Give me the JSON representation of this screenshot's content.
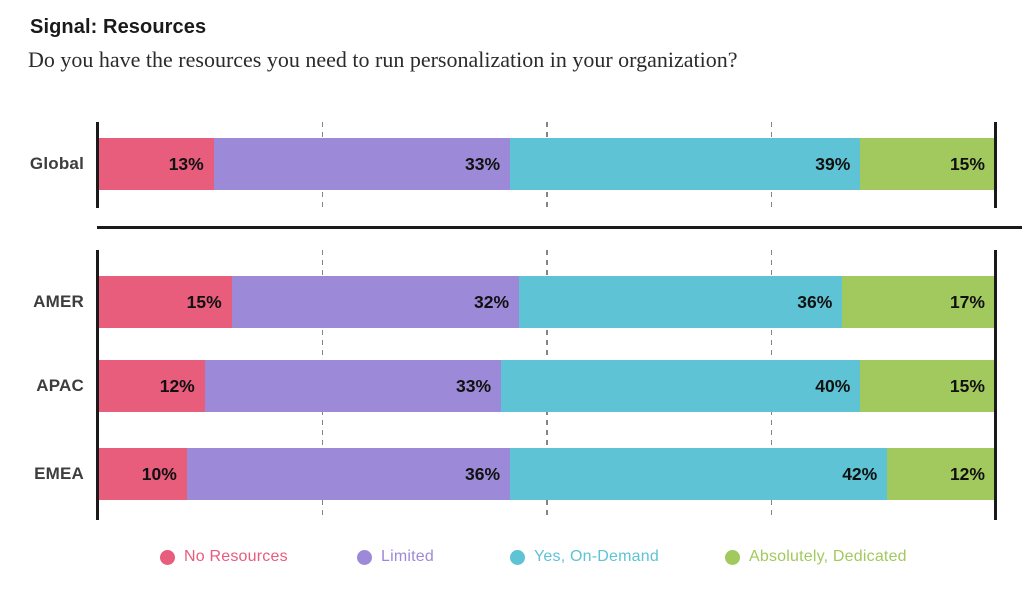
{
  "header": {
    "title": "Signal: Resources",
    "subtitle": "Do you have the resources you need to run personalization in your organization?"
  },
  "chart_data": {
    "type": "bar",
    "orientation": "horizontal",
    "stacked": true,
    "value_unit": "%",
    "xlim": [
      0,
      100
    ],
    "gridlines_percent": [
      25,
      50,
      75
    ],
    "grid_style": "dashed",
    "legend_position": "bottom",
    "categories": [
      "Global",
      "AMER",
      "APAC",
      "EMEA"
    ],
    "panels": [
      [
        "Global"
      ],
      [
        "AMER",
        "APAC",
        "EMEA"
      ]
    ],
    "series": [
      {
        "name": "No Resources",
        "color": "#E85C7C",
        "values": [
          13,
          15,
          12,
          10
        ]
      },
      {
        "name": "Limited",
        "color": "#9C8AD9",
        "values": [
          33,
          32,
          33,
          36
        ]
      },
      {
        "name": "Yes, On-Demand",
        "color": "#5EC3D4",
        "values": [
          39,
          36,
          40,
          42
        ]
      },
      {
        "name": "Absolutely, Dedicated",
        "color": "#A2C95D",
        "values": [
          15,
          17,
          15,
          12
        ]
      }
    ]
  }
}
